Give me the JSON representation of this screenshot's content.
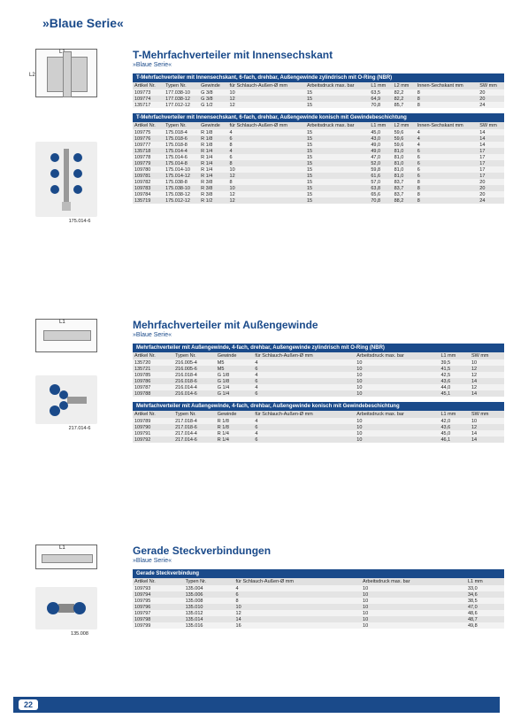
{
  "colors": {
    "brand": "#1a4a8a",
    "row_odd": "#f2f2f2",
    "row_even": "#e4e4e4",
    "th_bg": "#e0e0e0"
  },
  "page_header": "»Blaue Serie«",
  "page_number": "22",
  "sections": [
    {
      "title": "T-Mehrfachverteiler mit Innensechskant",
      "subtitle": "»Blaue Serie«",
      "tables": [
        {
          "banner": "T-Mehrfachverteiler mit Innensechskant, 6-fach, drehbar, Außengewinde zylindrisch mit O-Ring (NBR)",
          "columns": [
            "Artikel Nr.",
            "Typen Nr.",
            "Gewinde",
            "für Schlauch-Außen-Ø mm",
            "Arbeitsdruck max. bar",
            "L1 mm",
            "L2 mm",
            "Innen-Sechskant mm",
            "SW mm"
          ],
          "rows": [
            [
              "109773",
              "177.038-10",
              "G 3/8",
              "10",
              "15",
              "63,5",
              "82,2",
              "8",
              "20"
            ],
            [
              "109774",
              "177.038-12",
              "G 3/8",
              "12",
              "15",
              "64,9",
              "82,2",
              "8",
              "20"
            ],
            [
              "135717",
              "177.012-12",
              "G 1/2",
              "12",
              "15",
              "70,8",
              "85,7",
              "8",
              "24"
            ]
          ]
        },
        {
          "banner": "T-Mehrfachverteiler mit Innensechskant, 6-fach, drehbar, Außengewinde konisch mit Gewindebeschichtung",
          "columns": [
            "Artikel Nr.",
            "Typen Nr.",
            "Gewinde",
            "für Schlauch-Außen-Ø mm",
            "Arbeitsdruck max. bar",
            "L1 mm",
            "L2 mm",
            "Innen-Sechskant mm",
            "SW mm"
          ],
          "rows": [
            [
              "109775",
              "175.018-4",
              "R 1/8",
              "4",
              "15",
              "45,0",
              "59,6",
              "4",
              "14"
            ],
            [
              "109776",
              "175.018-6",
              "R 1/8",
              "6",
              "15",
              "43,0",
              "59,6",
              "4",
              "14"
            ],
            [
              "109777",
              "175.018-8",
              "R 1/8",
              "8",
              "15",
              "49,0",
              "59,6",
              "4",
              "14"
            ],
            [
              "135718",
              "175.014-4",
              "R 1/4",
              "4",
              "15",
              "49,0",
              "81,0",
              "6",
              "17"
            ],
            [
              "109778",
              "175.014-6",
              "R 1/4",
              "6",
              "15",
              "47,0",
              "81,0",
              "6",
              "17"
            ],
            [
              "109779",
              "175.014-8",
              "R 1/4",
              "8",
              "15",
              "52,0",
              "81,0",
              "6",
              "17"
            ],
            [
              "109780",
              "175.014-10",
              "R 1/4",
              "10",
              "15",
              "59,8",
              "81,0",
              "6",
              "17"
            ],
            [
              "109781",
              "175.014-12",
              "R 1/4",
              "12",
              "15",
              "61,6",
              "81,0",
              "6",
              "17"
            ],
            [
              "109782",
              "175.038-8",
              "R 3/8",
              "8",
              "15",
              "57,0",
              "83,7",
              "8",
              "20"
            ],
            [
              "109783",
              "175.038-10",
              "R 3/8",
              "10",
              "15",
              "63,8",
              "83,7",
              "8",
              "20"
            ],
            [
              "109784",
              "175.038-12",
              "R 3/8",
              "12",
              "15",
              "65,6",
              "83,7",
              "8",
              "20"
            ],
            [
              "135719",
              "175.012-12",
              "R 1/2",
              "12",
              "15",
              "70,8",
              "88,2",
              "8",
              "24"
            ]
          ]
        }
      ],
      "illus": [
        {
          "type": "schematic",
          "labels": [
            "L1",
            "L2"
          ],
          "caption": ""
        },
        {
          "type": "photo",
          "caption": "175.014-6"
        }
      ]
    },
    {
      "title": "Mehrfachverteiler mit Außengewinde",
      "subtitle": "»Blaue Serie«",
      "tables": [
        {
          "banner": "Mehrfachverteiler mit Außengewinde, 4-fach, drehbar, Außengewinde zylindrisch mit O-Ring (NBR)",
          "columns": [
            "Artikel Nr.",
            "Typen Nr.",
            "Gewinde",
            "für Schlauch-Außen-Ø mm",
            "Arbeitsdruck max. bar",
            "L1 mm",
            "SW mm"
          ],
          "rows": [
            [
              "135720",
              "216.005-4",
              "M5",
              "4",
              "10",
              "39,5",
              "10"
            ],
            [
              "135721",
              "216.005-6",
              "M5",
              "6",
              "10",
              "41,5",
              "12"
            ],
            [
              "109785",
              "216.018-4",
              "G 1/8",
              "4",
              "10",
              "42,5",
              "12"
            ],
            [
              "109786",
              "216.018-6",
              "G 1/8",
              "6",
              "10",
              "43,6",
              "14"
            ],
            [
              "109787",
              "216.014-4",
              "G 1/4",
              "4",
              "10",
              "44,0",
              "12"
            ],
            [
              "109788",
              "216.014-6",
              "G 1/4",
              "6",
              "10",
              "45,1",
              "14"
            ]
          ]
        },
        {
          "banner": "Mehrfachverteiler mit Außengewinde, 4-fach, drehbar, Außengewinde konisch mit Gewindebeschichtung",
          "columns": [
            "Artikel Nr.",
            "Typen Nr.",
            "Gewinde",
            "für Schlauch-Außen-Ø mm",
            "Arbeitsdruck max. bar",
            "L1 mm",
            "SW mm"
          ],
          "rows": [
            [
              "109789",
              "217.018-4",
              "R 1/8",
              "4",
              "10",
              "42,0",
              "10"
            ],
            [
              "109790",
              "217.018-6",
              "R 1/8",
              "6",
              "10",
              "43,6",
              "12"
            ],
            [
              "109791",
              "217.014-4",
              "R 1/4",
              "4",
              "10",
              "45,0",
              "14"
            ],
            [
              "109792",
              "217.014-6",
              "R 1/4",
              "6",
              "10",
              "46,1",
              "14"
            ]
          ]
        }
      ],
      "illus": [
        {
          "type": "schematic",
          "labels": [
            "L1"
          ],
          "caption": ""
        },
        {
          "type": "photo",
          "caption": "217.014-6"
        }
      ]
    },
    {
      "title": "Gerade Steckverbindungen",
      "subtitle": "»Blaue Serie«",
      "tables": [
        {
          "banner": "Gerade Steckverbindung",
          "columns": [
            "Artikel Nr.",
            "Typen Nr.",
            "für Schlauch-Außen-Ø mm",
            "Arbeitsdruck max. bar",
            "L1 mm"
          ],
          "rows": [
            [
              "109793",
              "135.004",
              "4",
              "10",
              "33,0"
            ],
            [
              "109794",
              "135.006",
              "6",
              "10",
              "34,6"
            ],
            [
              "109795",
              "135.008",
              "8",
              "10",
              "38,5"
            ],
            [
              "109796",
              "135.010",
              "10",
              "10",
              "47,0"
            ],
            [
              "109797",
              "135.012",
              "12",
              "10",
              "48,6"
            ],
            [
              "109798",
              "135.014",
              "14",
              "10",
              "48,7"
            ],
            [
              "109799",
              "135.016",
              "16",
              "10",
              "49,8"
            ]
          ]
        }
      ],
      "illus": [
        {
          "type": "schematic",
          "labels": [
            "L1"
          ],
          "caption": ""
        },
        {
          "type": "photo",
          "caption": "135.008"
        }
      ]
    }
  ]
}
